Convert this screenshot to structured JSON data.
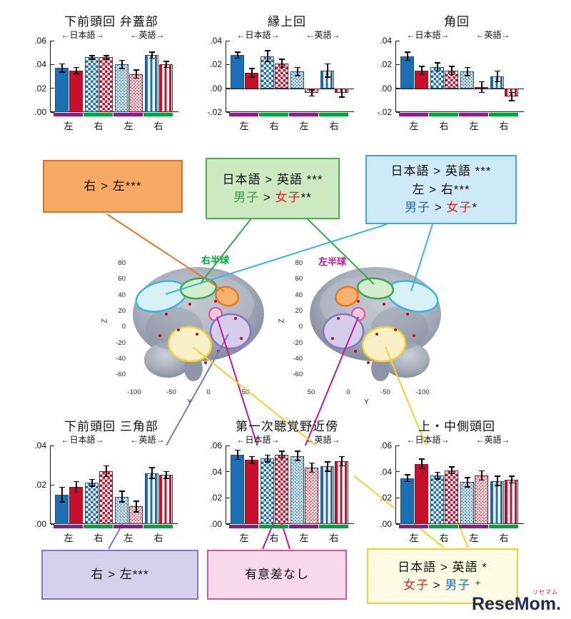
{
  "bar_colors": {
    "blue": "#1B6FB5",
    "red": "#C8102E"
  },
  "bar_patterns": [
    "solid",
    "checker",
    "checker-light",
    "stripes"
  ],
  "strip_colors": [
    "#8E1B8E",
    "#00A43C",
    "#8E1B8E",
    "#00A43C"
  ],
  "chart_data": [
    {
      "type": "bar",
      "title": "下前頭回 弁蓋部",
      "lang_groups": [
        "日本語",
        "英語"
      ],
      "groups": [
        "左",
        "右",
        "左",
        "右"
      ],
      "ylim": [
        0,
        0.06
      ],
      "ytick_vals": [
        0.06,
        0.04,
        0.02,
        0
      ],
      "ytick_labels": [
        ".06",
        ".04",
        ".02",
        ".00"
      ],
      "values": [
        0.037,
        0.035,
        0.046,
        0.046,
        0.04,
        0.032,
        0.048,
        0.04
      ],
      "errors": [
        0.004,
        0.003,
        0.002,
        0.002,
        0.004,
        0.004,
        0.003,
        0.003
      ]
    },
    {
      "type": "bar",
      "title": "縁上回",
      "lang_groups": [
        "日本語",
        "英語"
      ],
      "groups": [
        "左",
        "右",
        "左",
        "右"
      ],
      "ylim": [
        -0.02,
        0.04
      ],
      "ytick_vals": [
        0.04,
        0.02,
        0,
        -0.02
      ],
      "ytick_labels": [
        ".04",
        ".02",
        ".00",
        "-.02"
      ],
      "values": [
        0.028,
        0.013,
        0.027,
        0.021,
        0.014,
        -0.004,
        0.015,
        -0.004
      ],
      "errors": [
        0.003,
        0.004,
        0.005,
        0.004,
        0.004,
        0.003,
        0.006,
        0.004
      ]
    },
    {
      "type": "bar",
      "title": "角回",
      "lang_groups": [
        "日本語",
        "英語"
      ],
      "groups": [
        "左",
        "右",
        "左",
        "右"
      ],
      "ylim": [
        -0.02,
        0.04
      ],
      "ytick_vals": [
        0.04,
        0.02,
        0,
        -0.02
      ],
      "ytick_labels": [
        ".04",
        ".02",
        ".00",
        "-.02"
      ],
      "values": [
        0.027,
        0.015,
        0.018,
        0.015,
        0.014,
        0.001,
        0.01,
        -0.007
      ],
      "errors": [
        0.004,
        0.004,
        0.004,
        0.004,
        0.004,
        0.005,
        0.005,
        0.004
      ]
    },
    {
      "type": "bar",
      "title": "下前頭回 三角部",
      "lang_groups": [
        "日本語",
        "英語"
      ],
      "groups": [
        "左",
        "右",
        "左",
        "右"
      ],
      "ylim": [
        0,
        0.04
      ],
      "ytick_vals": [
        0.04,
        0.02,
        0
      ],
      "ytick_labels": [
        ".04",
        ".02",
        ".00"
      ],
      "values": [
        0.015,
        0.019,
        0.021,
        0.027,
        0.014,
        0.009,
        0.026,
        0.025
      ],
      "errors": [
        0.004,
        0.003,
        0.002,
        0.003,
        0.003,
        0.003,
        0.003,
        0.002
      ]
    },
    {
      "type": "bar",
      "title": "第一次聴覚野近傍",
      "lang_groups": [
        "日本語",
        "英語"
      ],
      "groups": [
        "左",
        "右",
        "左",
        "右"
      ],
      "ylim": [
        0,
        0.06
      ],
      "ytick_vals": [
        0.06,
        0.04,
        0.02,
        0
      ],
      "ytick_labels": [
        ".06",
        ".04",
        ".02",
        ".00"
      ],
      "values": [
        0.053,
        0.049,
        0.05,
        0.053,
        0.052,
        0.043,
        0.044,
        0.048
      ],
      "errors": [
        0.004,
        0.003,
        0.003,
        0.003,
        0.004,
        0.004,
        0.004,
        0.004
      ]
    },
    {
      "type": "bar",
      "title": "上・中側頭回",
      "lang_groups": [
        "日本語",
        "英語"
      ],
      "groups": [
        "左",
        "右",
        "左",
        "右"
      ],
      "ylim": [
        0,
        0.06
      ],
      "ytick_vals": [
        0.06,
        0.04,
        0.02,
        0
      ],
      "ytick_labels": [
        ".06",
        ".04",
        ".02",
        ".00"
      ],
      "values": [
        0.035,
        0.046,
        0.037,
        0.041,
        0.032,
        0.037,
        0.033,
        0.034
      ],
      "errors": [
        0.003,
        0.004,
        0.003,
        0.003,
        0.004,
        0.004,
        0.004,
        0.003
      ]
    }
  ],
  "stat_boxes": [
    {
      "id": "opercular",
      "bg": "#F5A963",
      "border": "#DD7128",
      "lines": [
        [
          {
            "t": "右 > 左***"
          }
        ]
      ]
    },
    {
      "id": "supramarginal",
      "bg": "#CDE9C2",
      "border": "#4CAE4C",
      "lines": [
        [
          {
            "t": "日本語 > 英語 ***"
          }
        ],
        [
          {
            "t": "男子",
            "c": "#2E9E4F"
          },
          {
            "t": " > "
          },
          {
            "t": "女子",
            "c": "#D42B2B"
          },
          {
            "t": "**"
          }
        ]
      ]
    },
    {
      "id": "angular",
      "bg": "#CFEAF7",
      "border": "#3FA9DD",
      "lines": [
        [
          {
            "t": "日本語 > 英語 ***"
          }
        ],
        [
          {
            "t": "左 > 右***"
          }
        ],
        [
          {
            "t": "男子",
            "c": "#1B6FB5"
          },
          {
            "t": " > "
          },
          {
            "t": "女子",
            "c": "#D42B2B"
          },
          {
            "t": "*"
          }
        ]
      ]
    },
    {
      "id": "triangular",
      "bg": "#D6D0EC",
      "border": "#8476C5",
      "lines": [
        [
          {
            "t": "右 > 左***"
          }
        ]
      ]
    },
    {
      "id": "auditory",
      "bg": "#F7D9EB",
      "border": "#D9549F",
      "lines": [
        [
          {
            "t": "有意差なし"
          }
        ]
      ]
    },
    {
      "id": "temporal",
      "bg": "#FEFBE5",
      "border": "#EFCF3A",
      "lines": [
        [
          {
            "t": "日本語 > 英語 *"
          }
        ],
        [
          {
            "t": "女子",
            "c": "#D42B2B"
          },
          {
            "t": " > "
          },
          {
            "t": "男子",
            "c": "#1B6FB5"
          },
          {
            "t": " ⁺"
          }
        ]
      ]
    }
  ],
  "brain": {
    "panels": [
      {
        "hemisphere_label": "右半球",
        "label_color": "#00A43C",
        "z_axis_label": "Z",
        "y_axis_label": "Y",
        "z_ticks": [
          "80",
          "60",
          "40",
          "20",
          "0",
          "-20",
          "-40",
          "-60"
        ],
        "y_ticks": [
          "-100",
          "-50",
          "0",
          "50"
        ]
      },
      {
        "hemisphere_label": "左半球",
        "label_color": "#B0199A",
        "z_axis_label": "Z",
        "y_axis_label": "Y",
        "z_ticks": [
          "80",
          "60",
          "40",
          "20",
          "0",
          "-20",
          "-40",
          "-60"
        ],
        "y_ticks": [
          "50",
          "0",
          "-50",
          "-100"
        ]
      }
    ],
    "regions": [
      {
        "name": "light-blue-region",
        "fill": "#D8F0F8",
        "stroke": "#3AB5DB"
      },
      {
        "name": "green-region",
        "fill": "#D4EDCC",
        "stroke": "#3AA84F"
      },
      {
        "name": "orange-region",
        "fill": "#F6B26B",
        "stroke": "#E5772B"
      },
      {
        "name": "pink-region",
        "fill": "#F6C6DF",
        "stroke": "#D9549F"
      },
      {
        "name": "purple-region",
        "fill": "#D5CDEB",
        "stroke": "#8476C5"
      },
      {
        "name": "yellow-region",
        "fill": "#F8F0C8",
        "stroke": "#EFCF3A"
      }
    ]
  },
  "logo": {
    "jp": "リセマム",
    "en": "ReseMom."
  }
}
